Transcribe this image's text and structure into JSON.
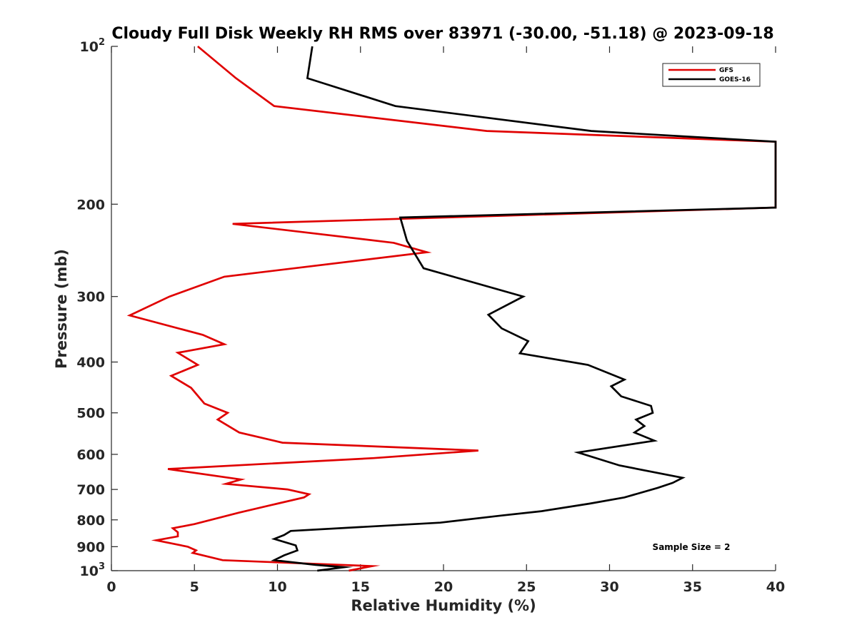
{
  "chart_data": {
    "type": "line",
    "title": "Cloudy Full Disk Weekly RH RMS over 83971 (-30.00, -51.18) @ 2023-09-18",
    "xlabel": "Relative Humidity (%)",
    "ylabel": "Pressure (mb)",
    "xlim": [
      0,
      40
    ],
    "ylim": [
      100,
      1000
    ],
    "y_scale": "log",
    "y_reversed": true,
    "grid": false,
    "legend_position": "top-right",
    "x_ticks": [
      0,
      5,
      10,
      15,
      20,
      25,
      30,
      35,
      40
    ],
    "x_tick_labels": [
      "0",
      "5",
      "10",
      "15",
      "20",
      "25",
      "30",
      "35",
      "40"
    ],
    "y_ticks": [
      100,
      200,
      300,
      400,
      500,
      600,
      700,
      800,
      900,
      1000
    ],
    "y_tick_labels": [
      {
        "base": "10",
        "sup": "2"
      },
      {
        "base": "200",
        "sup": ""
      },
      {
        "base": "300",
        "sup": ""
      },
      {
        "base": "400",
        "sup": ""
      },
      {
        "base": "500",
        "sup": ""
      },
      {
        "base": "600",
        "sup": ""
      },
      {
        "base": "700",
        "sup": ""
      },
      {
        "base": "800",
        "sup": ""
      },
      {
        "base": "900",
        "sup": ""
      },
      {
        "base": "10",
        "sup": "3"
      }
    ],
    "annotation": "Sample Size = 2",
    "series": [
      {
        "name": "GFS",
        "color": "#e00000",
        "points": [
          [
            5.2,
            100
          ],
          [
            7.5,
            115
          ],
          [
            9.8,
            130
          ],
          [
            22.6,
            145
          ],
          [
            40,
            152
          ],
          [
            40,
            203
          ],
          [
            7.3,
            218
          ],
          [
            17,
            237
          ],
          [
            19,
            247
          ],
          [
            6.8,
            275
          ],
          [
            3.5,
            300
          ],
          [
            1.1,
            326
          ],
          [
            5.5,
            355
          ],
          [
            6.8,
            370
          ],
          [
            4,
            384
          ],
          [
            5.2,
            405
          ],
          [
            3.6,
            425
          ],
          [
            4.8,
            448
          ],
          [
            5.6,
            480
          ],
          [
            7,
            500
          ],
          [
            6.4,
            515
          ],
          [
            7.7,
            545
          ],
          [
            10.3,
            570
          ],
          [
            22.1,
            590
          ],
          [
            15.8,
            610
          ],
          [
            3.4,
            640
          ],
          [
            7.8,
            670
          ],
          [
            6.9,
            683
          ],
          [
            10.6,
            700
          ],
          [
            11.9,
            715
          ],
          [
            11.6,
            725
          ],
          [
            10,
            745
          ],
          [
            7.7,
            775
          ],
          [
            5,
            815
          ],
          [
            3.7,
            830
          ],
          [
            4,
            845
          ],
          [
            4,
            860
          ],
          [
            2.7,
            875
          ],
          [
            4.6,
            900
          ],
          [
            5.1,
            915
          ],
          [
            4.9,
            925
          ],
          [
            6.7,
            955
          ],
          [
            15.7,
            980
          ],
          [
            14.3,
            1000
          ]
        ]
      },
      {
        "name": "GOES-16",
        "color": "#000000",
        "points": [
          [
            12.1,
            100
          ],
          [
            11.8,
            115
          ],
          [
            17.1,
            130
          ],
          [
            28.9,
            145
          ],
          [
            40,
            152
          ],
          [
            40,
            203
          ],
          [
            17.4,
            212
          ],
          [
            17.8,
            235
          ],
          [
            18.8,
            265
          ],
          [
            24.8,
            300
          ],
          [
            22.7,
            325
          ],
          [
            23.5,
            345
          ],
          [
            25.1,
            365
          ],
          [
            24.6,
            385
          ],
          [
            28.7,
            405
          ],
          [
            30.9,
            432
          ],
          [
            30.1,
            445
          ],
          [
            30.7,
            465
          ],
          [
            32.5,
            485
          ],
          [
            32.6,
            500
          ],
          [
            31.6,
            515
          ],
          [
            32.1,
            530
          ],
          [
            31.5,
            545
          ],
          [
            32.7,
            565
          ],
          [
            28.1,
            595
          ],
          [
            30.6,
            630
          ],
          [
            34.4,
            665
          ],
          [
            33.8,
            680
          ],
          [
            32.9,
            695
          ],
          [
            30.9,
            725
          ],
          [
            28.8,
            745
          ],
          [
            25.9,
            770
          ],
          [
            23.5,
            785
          ],
          [
            19.8,
            810
          ],
          [
            10.8,
            840
          ],
          [
            10.4,
            855
          ],
          [
            9.8,
            870
          ],
          [
            11.1,
            895
          ],
          [
            11.2,
            915
          ],
          [
            10.4,
            935
          ],
          [
            9.8,
            955
          ],
          [
            12.3,
            975
          ],
          [
            14,
            985
          ],
          [
            12.4,
            1000
          ]
        ]
      }
    ]
  }
}
